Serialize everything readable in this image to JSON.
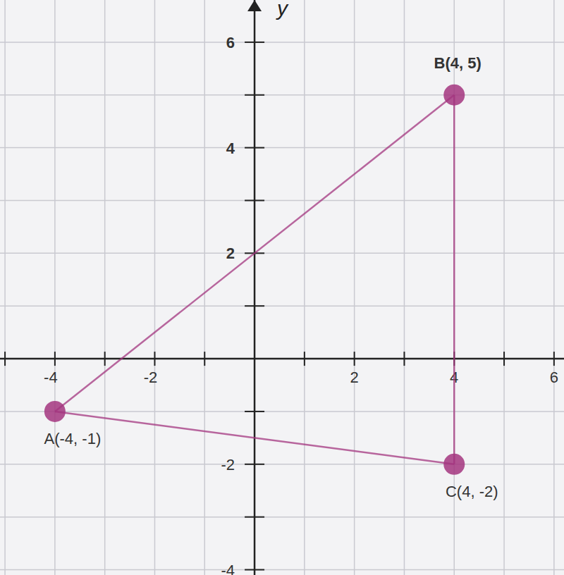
{
  "chart_data": {
    "type": "polygon",
    "y_label": "y",
    "points": [
      {
        "label": "A(-4, -1)",
        "x": -4,
        "y": -1
      },
      {
        "label": "B(4, 5)",
        "x": 4,
        "y": 5
      },
      {
        "label": "C(4, -2)",
        "x": 4,
        "y": -2
      }
    ],
    "color": "#a3357f",
    "xlim": [
      -5.1,
      6.2
    ],
    "ylim": [
      -4.1,
      6.8
    ],
    "xticks": [
      -4,
      -2,
      2,
      4,
      6
    ],
    "yticks": [
      -4,
      -2,
      2,
      4,
      6
    ],
    "xminor_ticks": [
      -5,
      -3,
      -1,
      1,
      3,
      5
    ],
    "yminor_ticks": [
      -3,
      -1,
      1,
      3,
      5
    ],
    "grid": true
  }
}
